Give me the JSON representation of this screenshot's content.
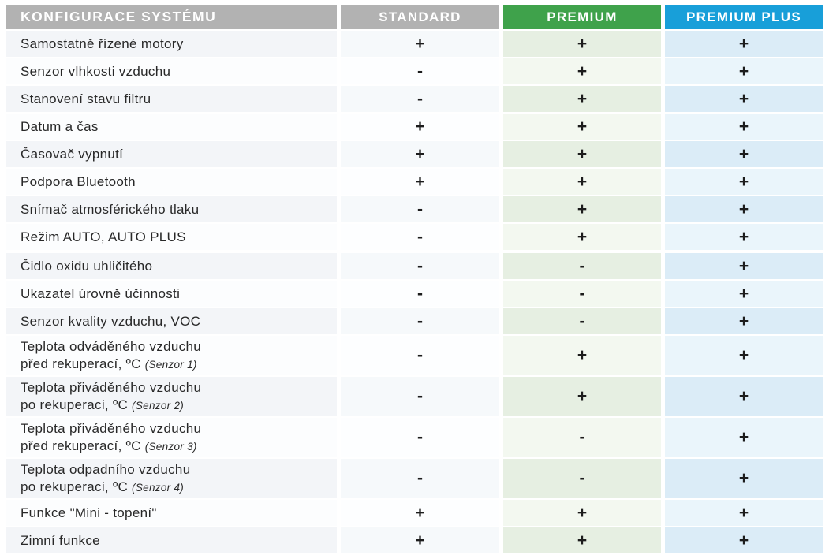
{
  "colors": {
    "header_gray": "#b2b2b2",
    "premium_green": "#3fa24b",
    "premium_plus_blue": "#189fd9",
    "text_dark": "#282828"
  },
  "table": {
    "header": {
      "config_label": "KONFIGURACE SYSTÉMU",
      "columns": [
        {
          "key": "standard",
          "label": "STANDARD",
          "color": "#b2b2b2"
        },
        {
          "key": "premium",
          "label": "PREMIUM",
          "color": "#3fa24b"
        },
        {
          "key": "premium_plus",
          "label": "PREMIUM PLUS",
          "color": "#189fd9"
        }
      ]
    },
    "symbols": {
      "included": "+",
      "not_included": "-"
    },
    "rows": [
      {
        "label": "Samostatně řízené motory",
        "note": "",
        "standard": "+",
        "premium": "+",
        "premium_plus": "+"
      },
      {
        "label": "Senzor vlhkosti vzduchu",
        "note": "",
        "standard": "-",
        "premium": "+",
        "premium_plus": "+"
      },
      {
        "label": "Stanovení stavu filtru",
        "note": "",
        "standard": "-",
        "premium": "+",
        "premium_plus": "+"
      },
      {
        "label": "Datum a čas",
        "note": "",
        "standard": "+",
        "premium": "+",
        "premium_plus": "+"
      },
      {
        "label": "Časovač vypnutí",
        "note": "",
        "standard": "+",
        "premium": "+",
        "premium_plus": "+"
      },
      {
        "label": "Podpora Bluetooth",
        "note": "",
        "standard": "+",
        "premium": "+",
        "premium_plus": "+"
      },
      {
        "label": "Snímač atmosférického tlaku",
        "note": "",
        "standard": "-",
        "premium": "+",
        "premium_plus": "+"
      },
      {
        "label": "Režim AUTO, AUTO PLUS",
        "note": "",
        "standard": "-",
        "premium": "+",
        "premium_plus": "+"
      },
      {
        "label": "Čidlo oxidu uhličitého",
        "note": "",
        "standard": "-",
        "premium": "-",
        "premium_plus": "+"
      },
      {
        "label": "Ukazatel úrovně účinnosti",
        "note": "",
        "standard": "-",
        "premium": "-",
        "premium_plus": "+"
      },
      {
        "label": "Senzor kvality vzduchu, VOC",
        "note": "",
        "standard": "-",
        "premium": "-",
        "premium_plus": "+"
      },
      {
        "label": "Teplota odváděného vzduchu\npřed rekuperací, ºC",
        "note": "(Senzor 1)",
        "standard": "-",
        "premium": "+",
        "premium_plus": "+"
      },
      {
        "label": "Teplota přiváděného vzduchu\npo rekuperaci, ºC",
        "note": "(Senzor 2)",
        "standard": "-",
        "premium": "+",
        "premium_plus": "+"
      },
      {
        "label": "Teplota přiváděného vzduchu\npřed rekuperací, ºC",
        "note": "(Senzor 3)",
        "standard": "-",
        "premium": "-",
        "premium_plus": "+"
      },
      {
        "label": "Teplota odpadního vzduchu\npo rekuperaci, ºC",
        "note": "(Senzor 4)",
        "standard": "-",
        "premium": "-",
        "premium_plus": "+"
      },
      {
        "label": "Funkce \"Mini - topení\"",
        "note": "",
        "standard": "+",
        "premium": "+",
        "premium_plus": "+"
      },
      {
        "label": "Zimní funkce",
        "note": "",
        "standard": "+",
        "premium": "+",
        "premium_plus": "+"
      }
    ]
  }
}
